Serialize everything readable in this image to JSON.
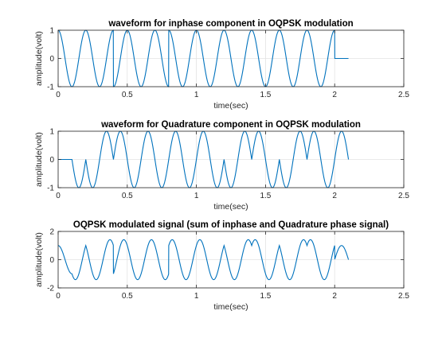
{
  "chart_data": [
    {
      "type": "line",
      "title": "waveform for inphase component in OQPSK modulation",
      "xlabel": "time(sec)",
      "ylabel": "amplitude(volt)",
      "xlim": [
        0,
        2.5
      ],
      "ylim": [
        -1,
        1
      ],
      "xticks": [
        0,
        0.5,
        1,
        1.5,
        2,
        2.5
      ],
      "xtick_labels": [
        "0",
        "0.5",
        "1",
        "1.5",
        "2",
        "2.5"
      ],
      "yticks": [
        -1,
        0,
        1
      ],
      "ytick_labels": [
        "-1",
        "0",
        "1"
      ],
      "grid": true,
      "line_color": "#0072bd",
      "series": [
        {
          "name": "",
          "frequency_hz": 5,
          "waveform": "cosine",
          "segment_duration": 0.2,
          "segment_phases_deg": [
            0,
            0,
            180,
            180,
            0,
            0,
            0,
            0,
            0,
            0
          ],
          "leading_zero_until": 0,
          "trailing_zero_after": 2.0,
          "x_end": 2.1
        }
      ]
    },
    {
      "type": "line",
      "title": "waveform for Quadrature component in OQPSK modulation",
      "xlabel": "time(sec)",
      "ylabel": "amplitude(volt)",
      "xlim": [
        0,
        2.5
      ],
      "ylim": [
        -1,
        1
      ],
      "xticks": [
        0,
        0.5,
        1,
        1.5,
        2,
        2.5
      ],
      "xtick_labels": [
        "0",
        "0.5",
        "1",
        "1.5",
        "2",
        "2.5"
      ],
      "yticks": [
        -1,
        0,
        1
      ],
      "ytick_labels": [
        "-1",
        "0",
        "1"
      ],
      "grid": true,
      "line_color": "#0072bd",
      "series": [
        {
          "name": "",
          "frequency_hz": 5,
          "waveform": "sine",
          "segment_duration": 0.2,
          "segment_phases_deg": [
            0,
            180,
            0,
            0,
            0,
            0,
            180,
            0,
            180,
            0
          ],
          "leading_zero_until": 0.1,
          "trailing_zero_after": 2.1,
          "x_end": 2.1
        }
      ]
    },
    {
      "type": "line",
      "title": "OQPSK modulated signal (sum of inphase and Quadrature phase signal)",
      "xlabel": "time(sec)",
      "ylabel": "amplitude(volt)",
      "xlim": [
        0,
        2.5
      ],
      "ylim": [
        -2,
        2
      ],
      "xticks": [
        0,
        0.5,
        1,
        1.5,
        2,
        2.5
      ],
      "xtick_labels": [
        "0",
        "0.5",
        "1",
        "1.5",
        "2",
        "2.5"
      ],
      "yticks": [
        -2,
        0,
        2
      ],
      "ytick_labels": [
        "-2",
        "0",
        "2"
      ],
      "grid": true,
      "line_color": "#0072bd",
      "series": [
        {
          "name": "",
          "composition": "sum of inphase and quadrature series",
          "x_end": 2.1
        }
      ]
    }
  ]
}
